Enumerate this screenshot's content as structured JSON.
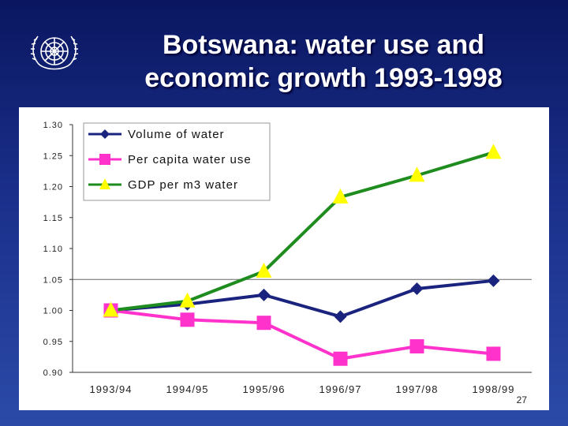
{
  "slide": {
    "title_line1": "Botswana: water use and",
    "title_line2": "economic growth 1993-1998",
    "page_number": "27",
    "logo_icon": "un-emblem-icon"
  },
  "chart_data": {
    "type": "line",
    "title": "Botswana: water use and economic growth 1993-1998",
    "categories": [
      "1993/94",
      "1994/95",
      "1995/96",
      "1996/97",
      "1997/98",
      "1998/99"
    ],
    "series": [
      {
        "name": "Volume of water",
        "color": "#1a237e",
        "marker": "diamond",
        "values": [
          1.0,
          1.01,
          1.025,
          0.99,
          1.035,
          1.048
        ]
      },
      {
        "name": "Per capita water use",
        "color": "#ff33cc",
        "marker": "square",
        "values": [
          1.0,
          0.985,
          0.98,
          0.922,
          0.942,
          0.93
        ]
      },
      {
        "name": "GDP per m3 water",
        "color": "#1e8c1e",
        "marker": "triangle",
        "marker_color": "#ffff00",
        "values": [
          1.0,
          1.015,
          1.063,
          1.183,
          1.218,
          1.255
        ]
      }
    ],
    "y_ticks": [
      "1.30",
      "1.25",
      "1.20",
      "1.15",
      "1.10",
      "1.05",
      "1.00",
      "0.95",
      "0.90"
    ],
    "ylim": [
      0.9,
      1.3
    ],
    "reference_line": 1.05,
    "legend_position": "top-left",
    "xlabel": "",
    "ylabel": ""
  }
}
